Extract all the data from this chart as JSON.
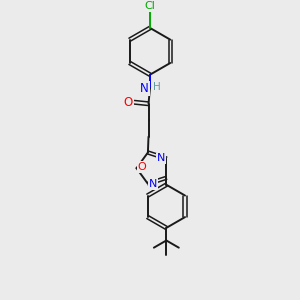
{
  "bg_color": "#ebebeb",
  "bond_color": "#1a1a1a",
  "N_color": "#0000ff",
  "O_color": "#ff0000",
  "Cl_color": "#00aa00",
  "H_color": "#5f9ea0",
  "figsize": [
    3.0,
    3.0
  ],
  "dpi": 100,
  "xlim": [
    0,
    10
  ],
  "ylim": [
    0,
    10
  ]
}
